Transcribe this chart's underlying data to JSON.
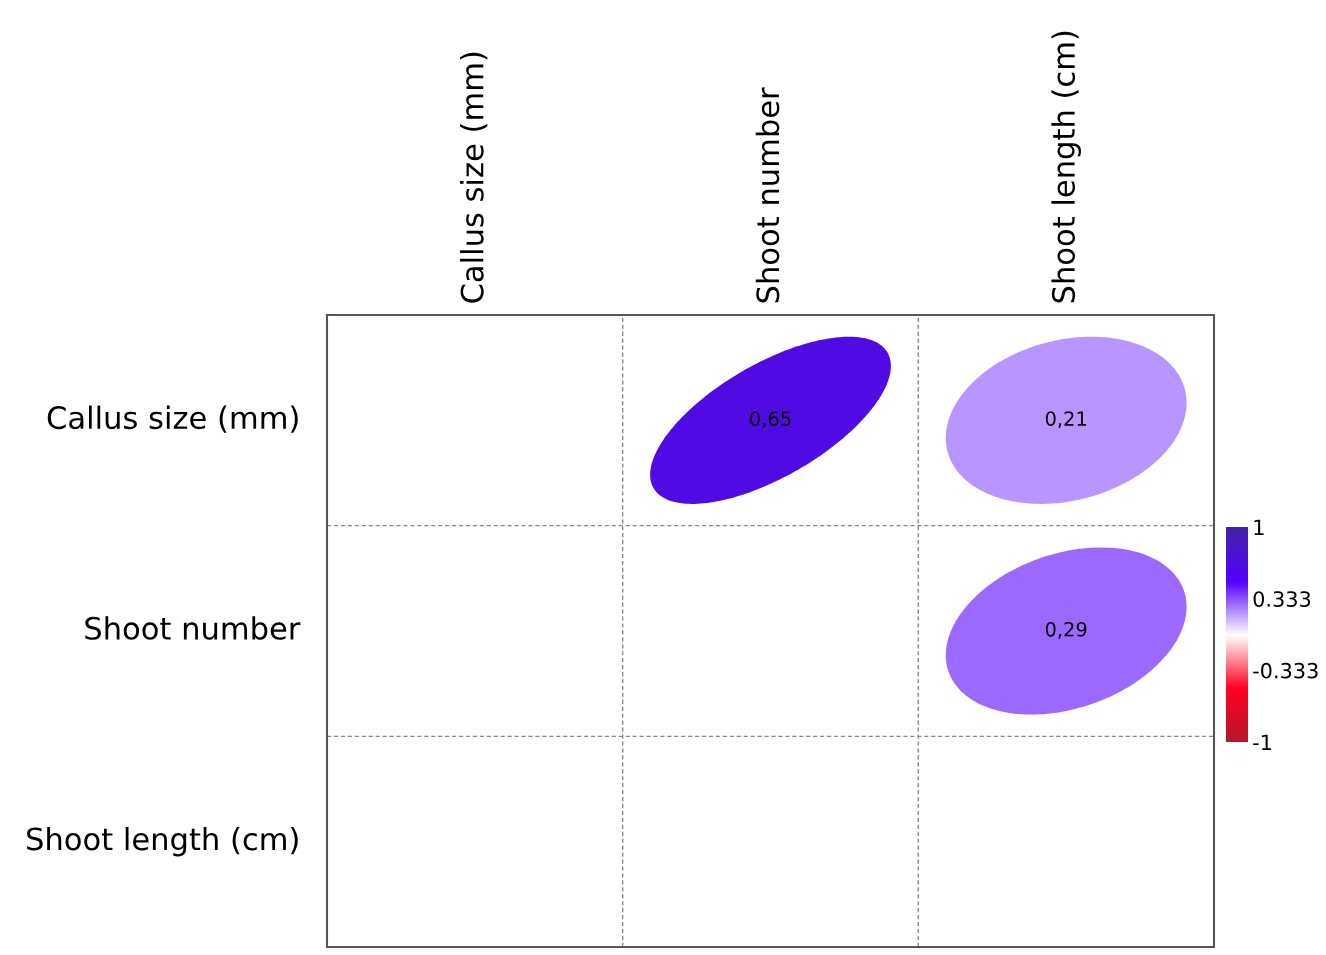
{
  "chart_data": {
    "type": "heatmap",
    "categories": [
      "Callus size (mm)",
      "Shoot number",
      "Shoot length (cm)"
    ],
    "y_categories": [
      "Callus size (mm)",
      "Shoot number",
      "Shoot length (cm)"
    ],
    "cells": [
      [
        null,
        0.65,
        0.21
      ],
      [
        null,
        null,
        0.29
      ],
      [
        null,
        null,
        null
      ]
    ],
    "cell_labels": [
      [
        null,
        "0,65",
        "0,21"
      ],
      [
        null,
        null,
        "0,29"
      ],
      [
        null,
        null,
        null
      ]
    ],
    "clim": [
      -1,
      1
    ],
    "cticks": [
      {
        "value": 1,
        "label": "1"
      },
      {
        "value": 0.333,
        "label": "0.333"
      },
      {
        "value": -0.333,
        "label": "-0.333"
      },
      {
        "value": -1,
        "label": "-1"
      }
    ],
    "grid": true
  }
}
